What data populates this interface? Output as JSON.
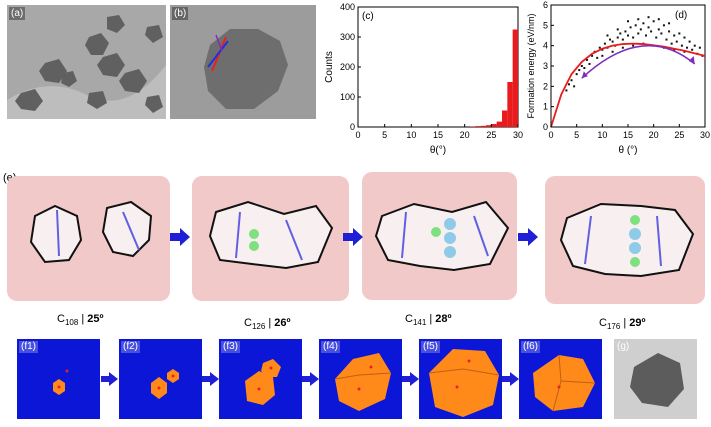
{
  "panels": {
    "a": "(a)",
    "b": "(b)",
    "c": "(c)",
    "d": "(d)",
    "e": "(e)",
    "g": "(g)"
  },
  "chart_data": [
    {
      "type": "bar",
      "panel": "(c)",
      "xlabel": "θ(°)",
      "ylabel": "Counts",
      "xlim": [
        0,
        30
      ],
      "ylim": [
        0,
        400
      ],
      "xticks": [
        "0",
        "5",
        "10",
        "15",
        "20",
        "25",
        "30"
      ],
      "yticks": [
        "0",
        "100",
        "200",
        "300",
        "400"
      ],
      "bins": [
        [
          21,
          22
        ],
        [
          22,
          23
        ],
        [
          23,
          24
        ],
        [
          24,
          25
        ],
        [
          25,
          26
        ],
        [
          26,
          27
        ],
        [
          27,
          28
        ],
        [
          28,
          29
        ],
        [
          29,
          30
        ]
      ],
      "values": [
        2,
        3,
        4,
        6,
        10,
        18,
        55,
        150,
        325
      ],
      "color": "#e81c1c"
    },
    {
      "type": "scatter",
      "panel": "(d)",
      "xlabel": "θ (°)",
      "ylabel": "Formation energy (eV/nm)",
      "xlim": [
        0,
        30
      ],
      "ylim": [
        0,
        6
      ],
      "xticks": [
        "0",
        "5",
        "10",
        "15",
        "20",
        "25",
        "30"
      ],
      "yticks": [
        "0",
        "1",
        "2",
        "3",
        "4",
        "5",
        "6"
      ],
      "fit_curve": {
        "color": "#e81c1c",
        "x": [
          0,
          2,
          4,
          6,
          8,
          10,
          12,
          14,
          16,
          18,
          20,
          22,
          24,
          26,
          28,
          30
        ],
        "y": [
          0.0,
          1.6,
          2.6,
          3.2,
          3.6,
          3.85,
          4.0,
          4.08,
          4.1,
          4.08,
          4.02,
          3.95,
          3.85,
          3.75,
          3.62,
          3.5
        ]
      },
      "arc_color": "#7b2fbf",
      "points": [
        [
          3,
          1.8
        ],
        [
          3.5,
          2.1
        ],
        [
          4,
          2.3
        ],
        [
          4.5,
          2.0
        ],
        [
          5,
          2.6
        ],
        [
          5.5,
          2.8
        ],
        [
          6,
          3.0
        ],
        [
          6.5,
          2.9
        ],
        [
          7,
          3.3
        ],
        [
          7.5,
          3.1
        ],
        [
          8,
          3.5
        ],
        [
          8.5,
          3.7
        ],
        [
          9,
          3.4
        ],
        [
          9.5,
          3.9
        ],
        [
          10,
          3.8
        ],
        [
          10.5,
          4.1
        ],
        [
          11,
          3.9
        ],
        [
          11.5,
          4.3
        ],
        [
          12,
          4.2
        ],
        [
          12.5,
          4.0
        ],
        [
          13,
          4.4
        ],
        [
          13.5,
          4.6
        ],
        [
          14,
          4.3
        ],
        [
          14.5,
          4.7
        ],
        [
          15,
          4.5
        ],
        [
          15.5,
          4.9
        ],
        [
          16,
          4.4
        ],
        [
          16.5,
          5.0
        ],
        [
          17,
          4.6
        ],
        [
          17.5,
          4.8
        ],
        [
          18,
          5.1
        ],
        [
          18.5,
          4.5
        ],
        [
          19,
          4.9
        ],
        [
          19.5,
          4.7
        ],
        [
          20,
          5.2
        ],
        [
          20.5,
          4.4
        ],
        [
          21,
          4.8
        ],
        [
          21.5,
          4.6
        ],
        [
          22,
          5.0
        ],
        [
          22.5,
          4.3
        ],
        [
          23,
          4.7
        ],
        [
          23.5,
          4.1
        ],
        [
          24,
          4.5
        ],
        [
          24.5,
          4.2
        ],
        [
          25,
          4.6
        ],
        [
          25.5,
          4.0
        ],
        [
          26,
          4.4
        ],
        [
          26.5,
          3.9
        ],
        [
          27,
          4.2
        ],
        [
          27.5,
          3.8
        ],
        [
          28,
          4.0
        ],
        [
          28.5,
          3.6
        ],
        [
          29,
          3.9
        ],
        [
          29.5,
          3.5
        ],
        [
          10,
          3.5
        ],
        [
          12,
          3.7
        ],
        [
          14,
          3.9
        ],
        [
          16,
          4.0
        ],
        [
          18,
          4.1
        ],
        [
          20,
          4.0
        ],
        [
          22,
          3.9
        ],
        [
          24,
          3.8
        ],
        [
          26,
          3.7
        ],
        [
          11,
          4.5
        ],
        [
          13,
          4.8
        ],
        [
          15,
          5.2
        ],
        [
          17,
          5.3
        ],
        [
          19,
          5.4
        ],
        [
          21,
          5.3
        ],
        [
          23,
          5.1
        ]
      ]
    }
  ],
  "captions": [
    {
      "base": "C",
      "sub": "108",
      "sep": " | ",
      "angle": "25º"
    },
    {
      "base": "C",
      "sub": "126",
      "sep": " | ",
      "angle": "26º"
    },
    {
      "base": "C",
      "sub": "141",
      "sep": " | ",
      "angle": "28º"
    },
    {
      "base": "C",
      "sub": "176",
      "sep": " | ",
      "angle": "29º"
    }
  ],
  "f_labels": [
    "(f1)",
    "(f2)",
    "(f3)",
    "(f4)",
    "(f5)",
    "(f6)"
  ]
}
